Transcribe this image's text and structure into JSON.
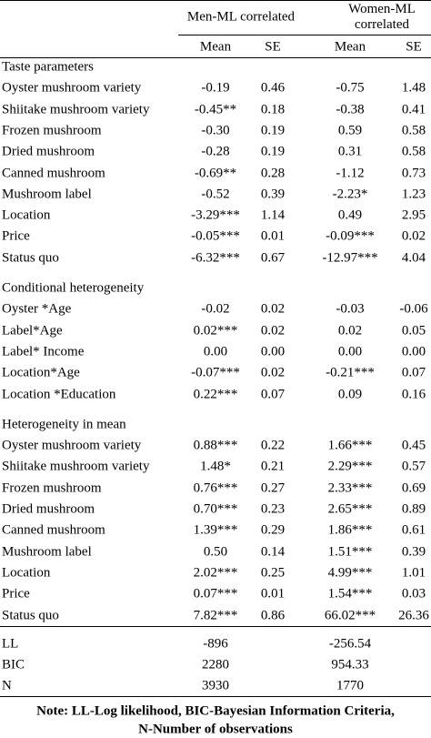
{
  "table": {
    "groups": [
      "Men-ML correlated",
      "Women-ML correlated"
    ],
    "columns": [
      "Mean",
      "SE",
      "Mean",
      "SE"
    ],
    "sections": [
      {
        "title": "Taste parameters",
        "rows": [
          [
            "Oyster mushroom variety",
            "-0.19",
            "0.46",
            "-0.75",
            "1.48"
          ],
          [
            "Shiitake mushroom variety",
            "-0.45**",
            "0.18",
            "-0.38",
            "0.41"
          ],
          [
            "Frozen mushroom",
            "-0.30",
            "0.19",
            "0.59",
            "0.58"
          ],
          [
            "Dried mushroom",
            "-0.28",
            "0.19",
            "0.31",
            "0.58"
          ],
          [
            "Canned mushroom",
            "-0.69**",
            "0.28",
            "-1.12",
            "0.73"
          ],
          [
            "Mushroom label",
            "-0.52",
            "0.39",
            "-2.23*",
            "1.23"
          ],
          [
            "Location",
            "-3.29***",
            "1.14",
            "0.49",
            "2.95"
          ],
          [
            "Price",
            "-0.05***",
            "0.01",
            "-0.09***",
            "0.02"
          ],
          [
            "Status quo",
            "-6.32***",
            "0.67",
            "-12.97***",
            "4.04"
          ]
        ]
      },
      {
        "title": "Conditional heterogeneity",
        "rows": [
          [
            "Oyster *Age",
            "-0.02",
            "0.02",
            "-0.03",
            "-0.06"
          ],
          [
            "Label*Age",
            "0.02***",
            "0.02",
            "0.02",
            "0.05"
          ],
          [
            "Label* Income",
            "0.00",
            "0.00",
            "0.00",
            "0.00"
          ],
          [
            "Location*Age",
            "-0.07***",
            "0.02",
            "-0.21***",
            "0.07"
          ],
          [
            "Location *Education",
            "0.22***",
            "0.07",
            "0.09",
            "0.16"
          ]
        ]
      },
      {
        "title": "Heterogeneity in mean",
        "rows": [
          [
            "Oyster mushroom variety",
            "0.88***",
            "0.22",
            "1.66***",
            "0.45"
          ],
          [
            "Shiitake mushroom variety",
            "1.48*",
            "0.21",
            "2.29***",
            "0.57"
          ],
          [
            "Frozen mushroom",
            "0.76***",
            "0.27",
            "2.33***",
            "0.69"
          ],
          [
            "Dried mushroom",
            "0.70***",
            "0.23",
            "2.65***",
            "0.89"
          ],
          [
            "Canned mushroom",
            "1.39***",
            "0.29",
            "1.86***",
            "0.61"
          ],
          [
            "Mushroom label",
            "0.50",
            "0.14",
            "1.51***",
            "0.39"
          ],
          [
            "Location",
            "2.02***",
            "0.25",
            "4.99***",
            "1.01"
          ],
          [
            "Price",
            "0.07***",
            "0.01",
            "1.54***",
            "0.03"
          ],
          [
            "Status quo",
            "7.82***",
            "0.86",
            "66.02***",
            "26.36"
          ]
        ]
      }
    ],
    "fit_rows": [
      [
        "LL",
        "-896",
        "-256.54"
      ],
      [
        "BIC",
        "2280",
        "954.33"
      ],
      [
        "N",
        "3930",
        "1770"
      ]
    ],
    "note": [
      "Note: LL-Log likelihood, BIC-Bayesian Information Criteria,",
      "N-Number of observations"
    ]
  }
}
